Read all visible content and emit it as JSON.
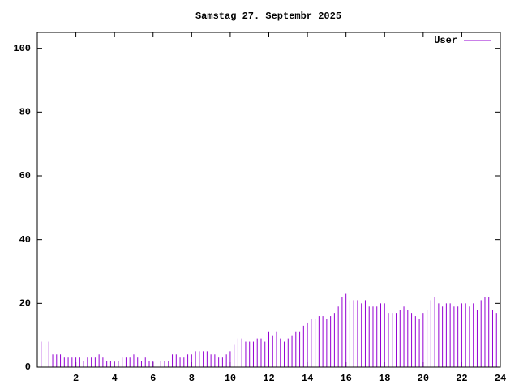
{
  "chart_data": {
    "type": "impulse",
    "title": "Samstag 27. Septembr 2025",
    "x": [
      0,
      0.2,
      0.4,
      0.6,
      0.8,
      1,
      1.2,
      1.4,
      1.6,
      1.8,
      2,
      2.2,
      2.4,
      2.6,
      2.8,
      3,
      3.2,
      3.4,
      3.6,
      3.8,
      4,
      4.2,
      4.4,
      4.6,
      4.8,
      5,
      5.2,
      5.4,
      5.6,
      5.8,
      6,
      6.2,
      6.4,
      6.6,
      6.8,
      7,
      7.2,
      7.4,
      7.6,
      7.8,
      8,
      8.2,
      8.4,
      8.6,
      8.8,
      9,
      9.2,
      9.4,
      9.6,
      9.8,
      10,
      10.2,
      10.4,
      10.6,
      10.8,
      11,
      11.2,
      11.4,
      11.6,
      11.8,
      12,
      12.2,
      12.4,
      12.6,
      12.8,
      13,
      13.2,
      13.4,
      13.6,
      13.8,
      14,
      14.2,
      14.4,
      14.6,
      14.8,
      15,
      15.2,
      15.4,
      15.6,
      15.8,
      16,
      16.2,
      16.4,
      16.6,
      16.8,
      17,
      17.2,
      17.4,
      17.6,
      17.8,
      18,
      18.2,
      18.4,
      18.6,
      18.8,
      19,
      19.2,
      19.4,
      19.6,
      19.8,
      20,
      20.2,
      20.4,
      20.6,
      20.8,
      21,
      21.2,
      21.4,
      21.6,
      21.8,
      22,
      22.2,
      22.4,
      22.6,
      22.8,
      23,
      23.2,
      23.4,
      23.6,
      23.8,
      24
    ],
    "series": [
      {
        "name": "User",
        "color": "#9400d3",
        "values": [
          10,
          8,
          7,
          8,
          4,
          4,
          4,
          3,
          3,
          3,
          3,
          3,
          2,
          3,
          3,
          3,
          4,
          3,
          2,
          2,
          2,
          2,
          3,
          3,
          3,
          4,
          3,
          2,
          3,
          2,
          2,
          2,
          2,
          2,
          2,
          4,
          4,
          3,
          3,
          4,
          4,
          5,
          5,
          5,
          5,
          4,
          4,
          3,
          3,
          4,
          5,
          7,
          9,
          9,
          8,
          8,
          8,
          9,
          9,
          8,
          11,
          10,
          11,
          9,
          8,
          9,
          10,
          11,
          11,
          13,
          14,
          15,
          15,
          16,
          16,
          15,
          16,
          17,
          19,
          22,
          23,
          21,
          21,
          21,
          20,
          21,
          19,
          19,
          19,
          20,
          20,
          17,
          17,
          17,
          18,
          19,
          18,
          17,
          16,
          15,
          17,
          18,
          21,
          22,
          20,
          19,
          20,
          20,
          19,
          19,
          20,
          20,
          19,
          20,
          18,
          21,
          22,
          22,
          18,
          17,
          16
        ]
      }
    ],
    "xlim": [
      0,
      24
    ],
    "xticks": [
      2,
      4,
      6,
      8,
      10,
      12,
      14,
      16,
      18,
      20,
      22,
      24
    ],
    "ylim": [
      0,
      105
    ],
    "yticks": [
      0,
      20,
      40,
      60,
      80,
      100
    ],
    "legend": "top-right"
  }
}
